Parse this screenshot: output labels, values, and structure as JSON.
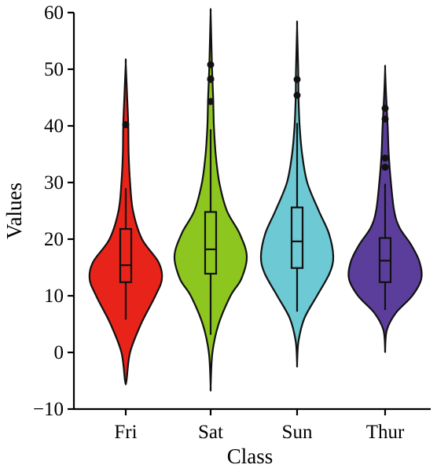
{
  "chart_data": {
    "type": "violin",
    "xlabel": "Class",
    "ylabel": "Values",
    "ylim": [
      -10,
      60
    ],
    "yticks": [
      -10,
      0,
      10,
      20,
      30,
      40,
      50,
      60
    ],
    "ytick_labels": [
      "−10",
      "0",
      "10",
      "20",
      "30",
      "40",
      "50",
      "60"
    ],
    "grid": false,
    "legend": "none",
    "categories": [
      "Fri",
      "Sat",
      "Sun",
      "Thur"
    ],
    "colors": [
      "#e8231a",
      "#8dc61f",
      "#6dc9d3",
      "#5b3e9b"
    ],
    "violins": [
      {
        "category": "Fri",
        "min_extent": -5,
        "max_extent": 51,
        "box": {
          "whisker_low": 5.8,
          "q1": 12.4,
          "median": 15.4,
          "q3": 21.8,
          "whisker_high": 29
        },
        "outliers": [
          40.2
        ],
        "density_profile": [
          [
            -5,
            0.02
          ],
          [
            0,
            0.12
          ],
          [
            5,
            0.42
          ],
          [
            10,
            0.82
          ],
          [
            13,
            1.0
          ],
          [
            16,
            0.9
          ],
          [
            20,
            0.45
          ],
          [
            25,
            0.2
          ],
          [
            30,
            0.12
          ],
          [
            35,
            0.08
          ],
          [
            40,
            0.07
          ],
          [
            45,
            0.04
          ],
          [
            51,
            0.0
          ]
        ]
      },
      {
        "category": "Sat",
        "min_extent": -6,
        "max_extent": 60,
        "box": {
          "whisker_low": 3.1,
          "q1": 13.9,
          "median": 18.2,
          "q3": 24.8,
          "whisker_high": 39.4
        },
        "outliers": [
          44.3,
          48.2,
          48.3,
          50.8
        ],
        "density_profile": [
          [
            -6,
            0.0
          ],
          [
            0,
            0.05
          ],
          [
            5,
            0.22
          ],
          [
            10,
            0.55
          ],
          [
            13,
            0.85
          ],
          [
            17,
            1.0
          ],
          [
            21,
            0.8
          ],
          [
            25,
            0.45
          ],
          [
            30,
            0.24
          ],
          [
            35,
            0.14
          ],
          [
            40,
            0.09
          ],
          [
            45,
            0.07
          ],
          [
            50,
            0.04
          ],
          [
            55,
            0.02
          ],
          [
            60,
            0.0
          ]
        ]
      },
      {
        "category": "Sun",
        "min_extent": -2,
        "max_extent": 57.5,
        "box": {
          "whisker_low": 7.2,
          "q1": 14.9,
          "median": 19.6,
          "q3": 25.6,
          "whisker_high": 40.5
        },
        "outliers": [
          45.4,
          48.2
        ],
        "density_profile": [
          [
            -2,
            0.0
          ],
          [
            2,
            0.04
          ],
          [
            6,
            0.2
          ],
          [
            10,
            0.55
          ],
          [
            14,
            0.9
          ],
          [
            17,
            1.0
          ],
          [
            21,
            0.88
          ],
          [
            25,
            0.6
          ],
          [
            30,
            0.28
          ],
          [
            35,
            0.14
          ],
          [
            40,
            0.07
          ],
          [
            45,
            0.04
          ],
          [
            50,
            0.03
          ],
          [
            57.5,
            0.0
          ]
        ]
      },
      {
        "category": "Thur",
        "min_extent": 0.5,
        "max_extent": 50,
        "box": {
          "whisker_low": 7.5,
          "q1": 12.4,
          "median": 16.2,
          "q3": 20.2,
          "whisker_high": 29.8
        },
        "outliers": [
          32.7,
          34.3,
          41.2,
          43.1
        ],
        "density_profile": [
          [
            0.5,
            0.0
          ],
          [
            4,
            0.05
          ],
          [
            7,
            0.3
          ],
          [
            10,
            0.75
          ],
          [
            13,
            1.0
          ],
          [
            16,
            0.95
          ],
          [
            19,
            0.72
          ],
          [
            22,
            0.4
          ],
          [
            25,
            0.25
          ],
          [
            30,
            0.16
          ],
          [
            35,
            0.1
          ],
          [
            40,
            0.07
          ],
          [
            45,
            0.03
          ],
          [
            50,
            0.0
          ]
        ]
      }
    ]
  }
}
